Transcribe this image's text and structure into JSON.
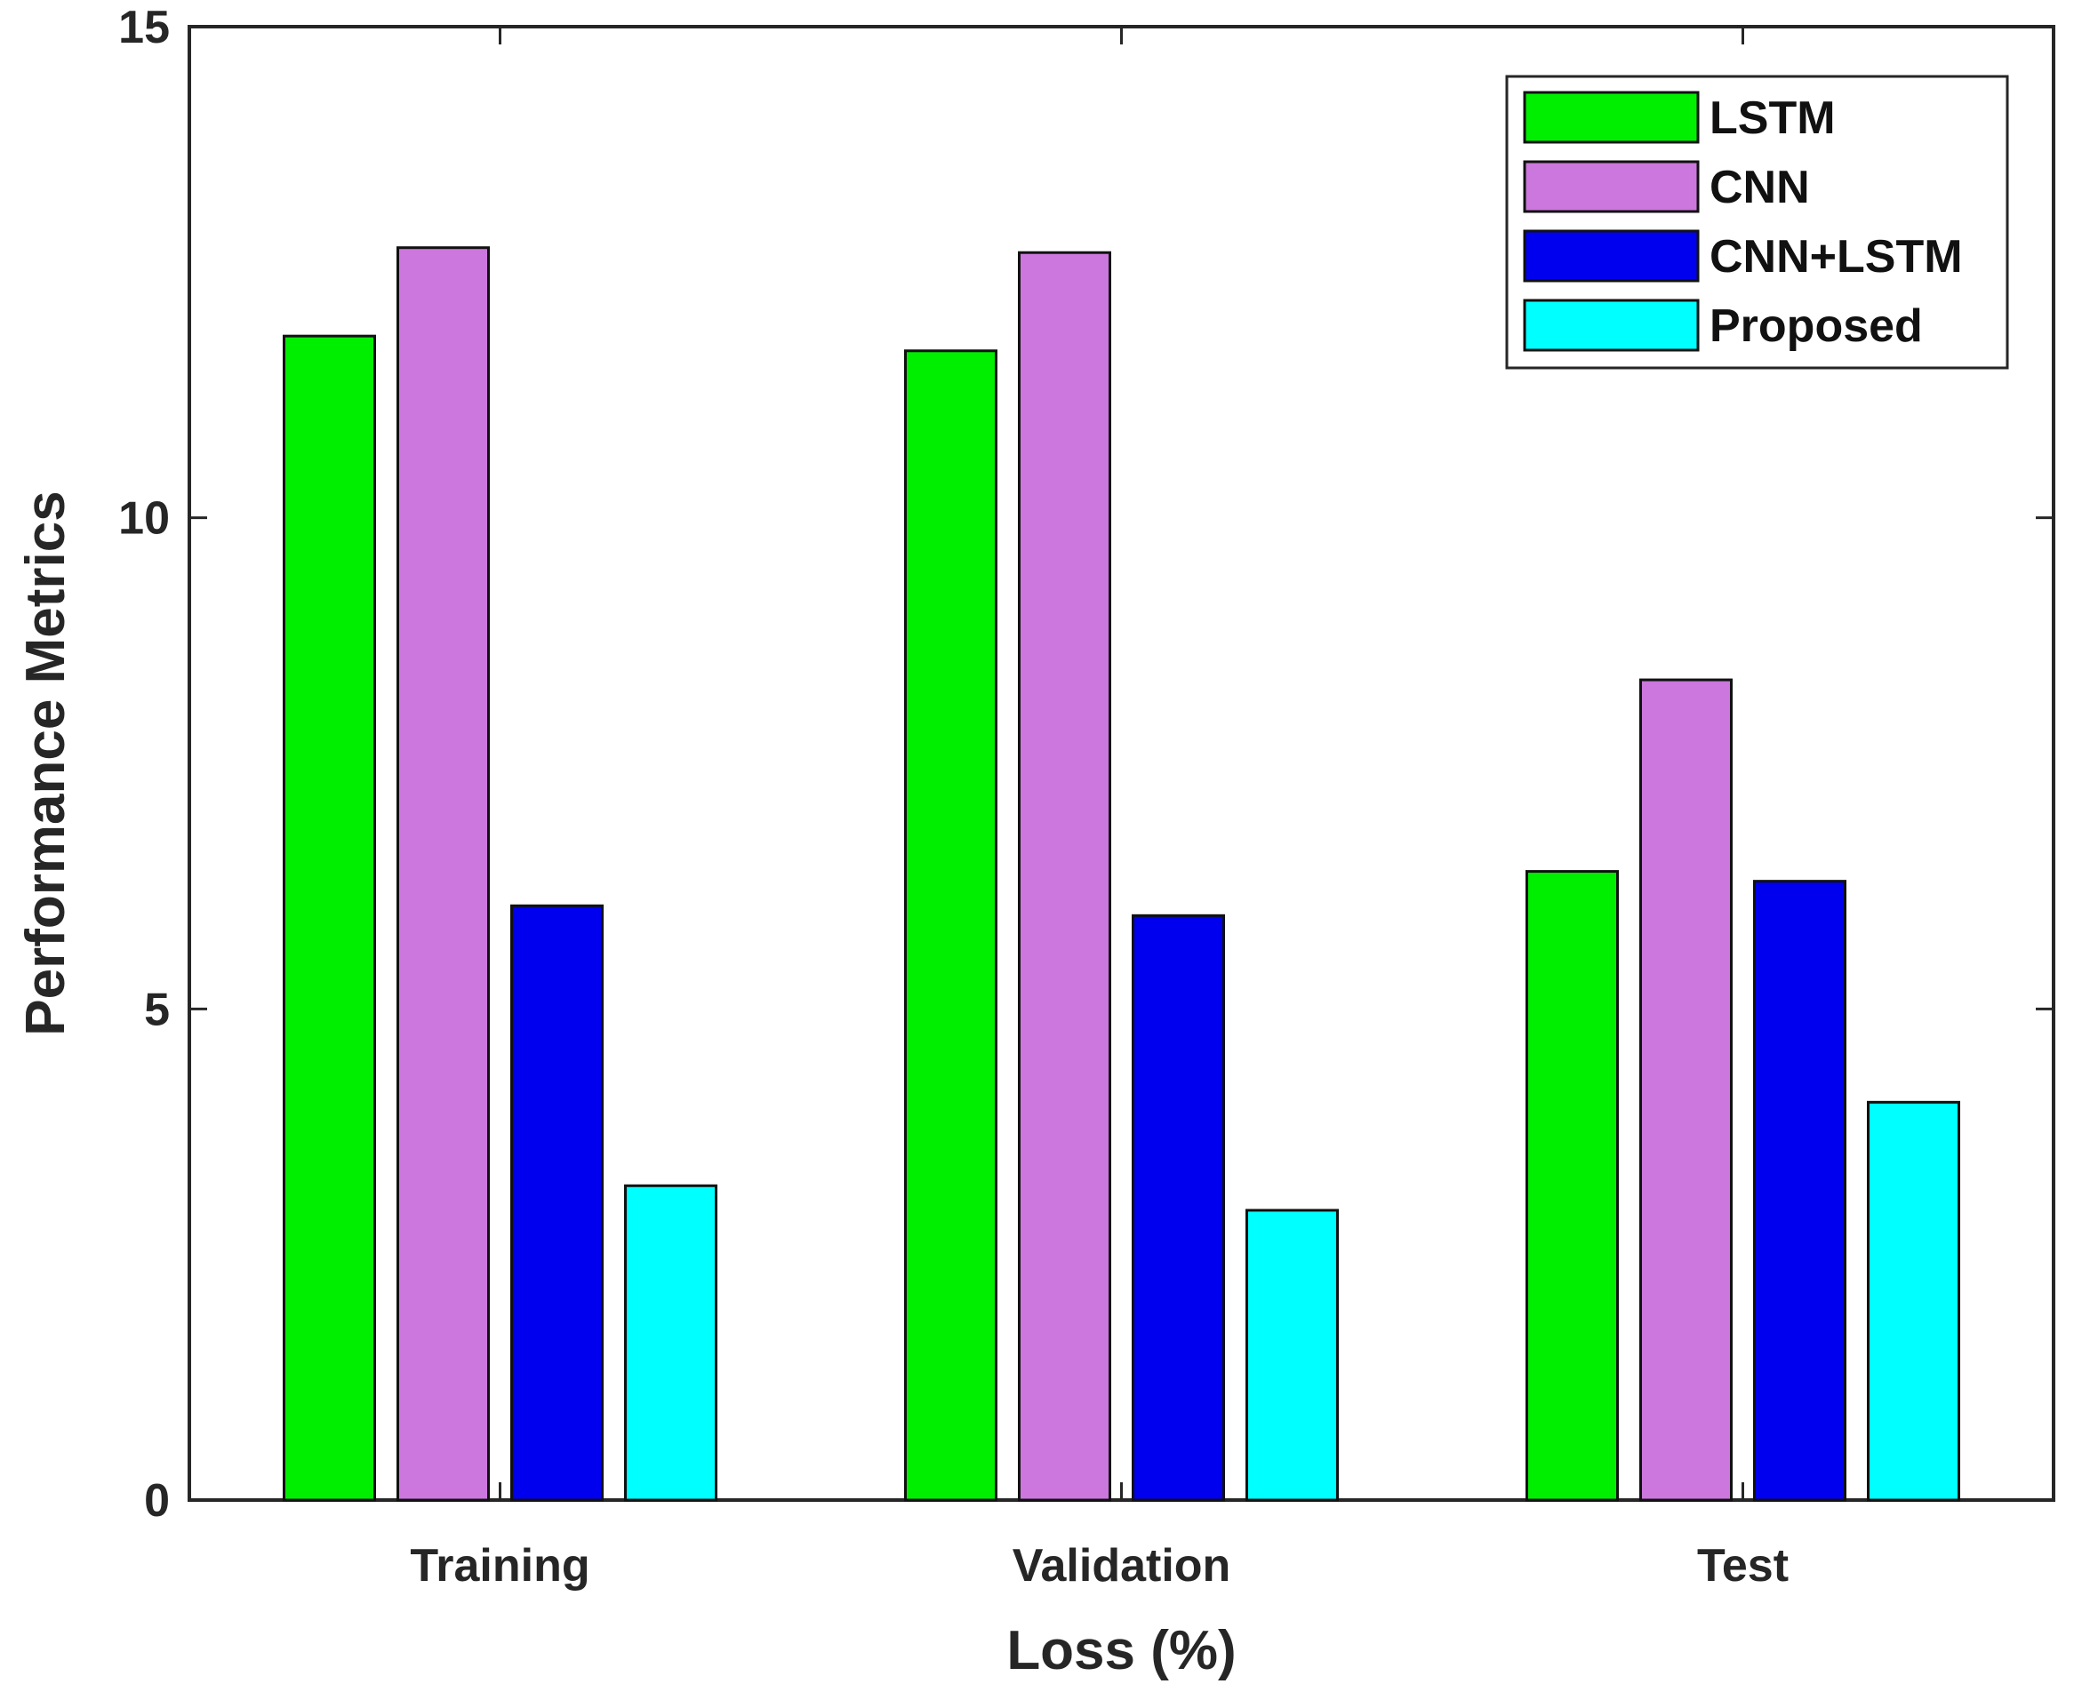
{
  "chart_data": {
    "type": "bar",
    "title": "",
    "xlabel": "Loss (%)",
    "ylabel": "Performance Metrics",
    "categories": [
      "Training",
      "Validation",
      "Test"
    ],
    "ylim": [
      0,
      15
    ],
    "yticks": [
      0,
      5,
      10,
      15
    ],
    "grid": false,
    "legend_position": "top-right",
    "series": [
      {
        "name": "LSTM",
        "color": "#00ee00",
        "values": [
          11.85,
          11.7,
          6.4
        ]
      },
      {
        "name": "CNN",
        "color": "#cc77dd",
        "values": [
          12.75,
          12.7,
          8.35
        ]
      },
      {
        "name": "CNN+LSTM",
        "color": "#0000ee",
        "values": [
          6.05,
          5.95,
          6.3
        ]
      },
      {
        "name": "Proposed",
        "color": "#00ffff",
        "values": [
          3.2,
          2.95,
          4.05
        ]
      }
    ]
  }
}
